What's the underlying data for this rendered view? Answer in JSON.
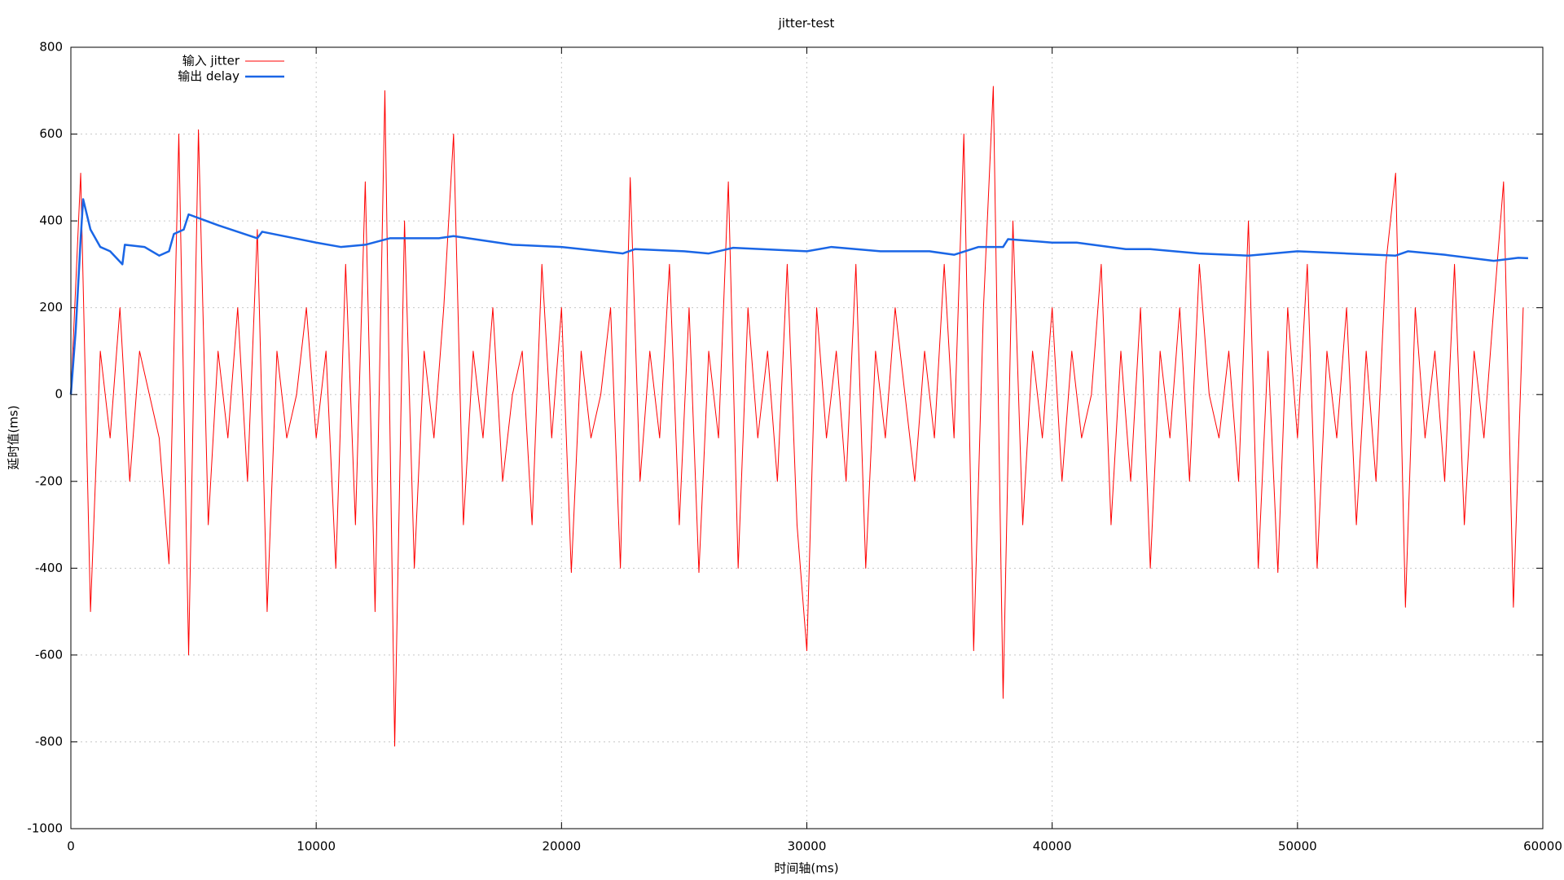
{
  "chart_data": {
    "type": "line",
    "title": "jitter-test",
    "x_label": "时间轴(ms)",
    "y_label": "延时值(ms)",
    "xlim": [
      0,
      60000
    ],
    "xticks": [
      0,
      10000,
      20000,
      30000,
      40000,
      50000,
      60000
    ],
    "ylim": [
      -1000,
      800
    ],
    "yticks": [
      -1000,
      -800,
      -600,
      -400,
      -200,
      0,
      200,
      400,
      600,
      800
    ],
    "grid": true,
    "legend": "top left",
    "series": [
      {
        "name": "输入 jitter",
        "color": "#ff0000",
        "width": 1,
        "x": [
          0,
          400,
          800,
          1200,
          1600,
          2000,
          2400,
          2800,
          3200,
          3600,
          4000,
          4400,
          4800,
          5200,
          5600,
          6000,
          6400,
          6800,
          7200,
          7600,
          8000,
          8400,
          8800,
          9200,
          9600,
          10000,
          10400,
          10800,
          11200,
          11600,
          12000,
          12400,
          12800,
          13200,
          13600,
          14000,
          14400,
          14800,
          15200,
          15600,
          16000,
          16400,
          16800,
          17200,
          17600,
          18000,
          18400,
          18800,
          19200,
          19600,
          20000,
          20400,
          20800,
          21200,
          21600,
          22000,
          22400,
          22800,
          23200,
          23600,
          24000,
          24400,
          24800,
          25200,
          25600,
          26000,
          26400,
          26800,
          27200,
          27600,
          28000,
          28400,
          28800,
          29200,
          29600,
          30000,
          30400,
          30800,
          31200,
          31600,
          32000,
          32400,
          32800,
          33200,
          33600,
          34000,
          34400,
          34800,
          35200,
          35600,
          36000,
          36400,
          36800,
          37200,
          37600,
          38000,
          38400,
          38800,
          39200,
          39600,
          40000,
          40400,
          40800,
          41200,
          41600,
          42000,
          42400,
          42800,
          43200,
          43600,
          44000,
          44400,
          44800,
          45200,
          45600,
          46000,
          46400,
          46800,
          47200,
          47600,
          48000,
          48400,
          48800,
          49200,
          49600,
          50000,
          50400,
          50800,
          51200,
          51600,
          52000,
          52400,
          52800,
          53200,
          53600,
          54000,
          54400,
          54800,
          55200,
          55600,
          56000,
          56400,
          56800,
          57200,
          57600,
          58000,
          58400,
          58800,
          59200
        ],
        "values": [
          0,
          510,
          -500,
          100,
          -100,
          200,
          -200,
          100,
          0,
          -100,
          -390,
          600,
          -600,
          610,
          -300,
          100,
          -100,
          200,
          -200,
          380,
          -500,
          100,
          -100,
          0,
          200,
          -100,
          100,
          -400,
          300,
          -300,
          490,
          -500,
          700,
          -810,
          400,
          -400,
          100,
          -100,
          200,
          600,
          -300,
          100,
          -100,
          200,
          -200,
          0,
          100,
          -300,
          300,
          -100,
          200,
          -410,
          100,
          -100,
          0,
          200,
          -400,
          500,
          -200,
          100,
          -100,
          300,
          -300,
          200,
          -410,
          100,
          -100,
          490,
          -400,
          200,
          -100,
          100,
          -200,
          300,
          -300,
          -590,
          200,
          -100,
          100,
          -200,
          300,
          -400,
          100,
          -100,
          200,
          0,
          -200,
          100,
          -100,
          300,
          -100,
          600,
          -590,
          200,
          710,
          -700,
          400,
          -300,
          100,
          -100,
          200,
          -200,
          100,
          -100,
          0,
          300,
          -300,
          100,
          -200,
          200,
          -400,
          100,
          -100,
          200,
          -200,
          300,
          0,
          -100,
          100,
          -200,
          400,
          -400,
          100,
          -410,
          200,
          -100,
          300,
          -400,
          100,
          -100,
          200,
          -300,
          100,
          -200,
          300,
          510,
          -490,
          200,
          -100,
          100,
          -200,
          300,
          -300,
          100,
          -100,
          200,
          490,
          -490,
          200
        ]
      },
      {
        "name": "输出 delay",
        "color": "#1a66e6",
        "width": 2.5,
        "x": [
          0,
          200,
          400,
          500,
          800,
          1200,
          1600,
          2100,
          2200,
          3000,
          3600,
          4000,
          4200,
          4600,
          4800,
          6000,
          7600,
          7800,
          10000,
          11000,
          12000,
          13000,
          15000,
          15600,
          18000,
          20000,
          22500,
          23000,
          25000,
          26000,
          27000,
          30000,
          31000,
          33000,
          35000,
          36000,
          37000,
          38000,
          38200,
          40000,
          41000,
          43000,
          44000,
          46000,
          48000,
          50000,
          52000,
          54000,
          54500,
          56000,
          58000,
          59000,
          59400
        ],
        "values": [
          0,
          150,
          360,
          450,
          380,
          340,
          330,
          300,
          345,
          340,
          320,
          330,
          370,
          380,
          415,
          390,
          360,
          375,
          350,
          340,
          345,
          360,
          360,
          365,
          345,
          340,
          325,
          335,
          330,
          325,
          338,
          330,
          340,
          330,
          330,
          322,
          340,
          340,
          358,
          350,
          350,
          335,
          335,
          325,
          320,
          330,
          325,
          320,
          330,
          322,
          308,
          315,
          314
        ]
      }
    ]
  }
}
